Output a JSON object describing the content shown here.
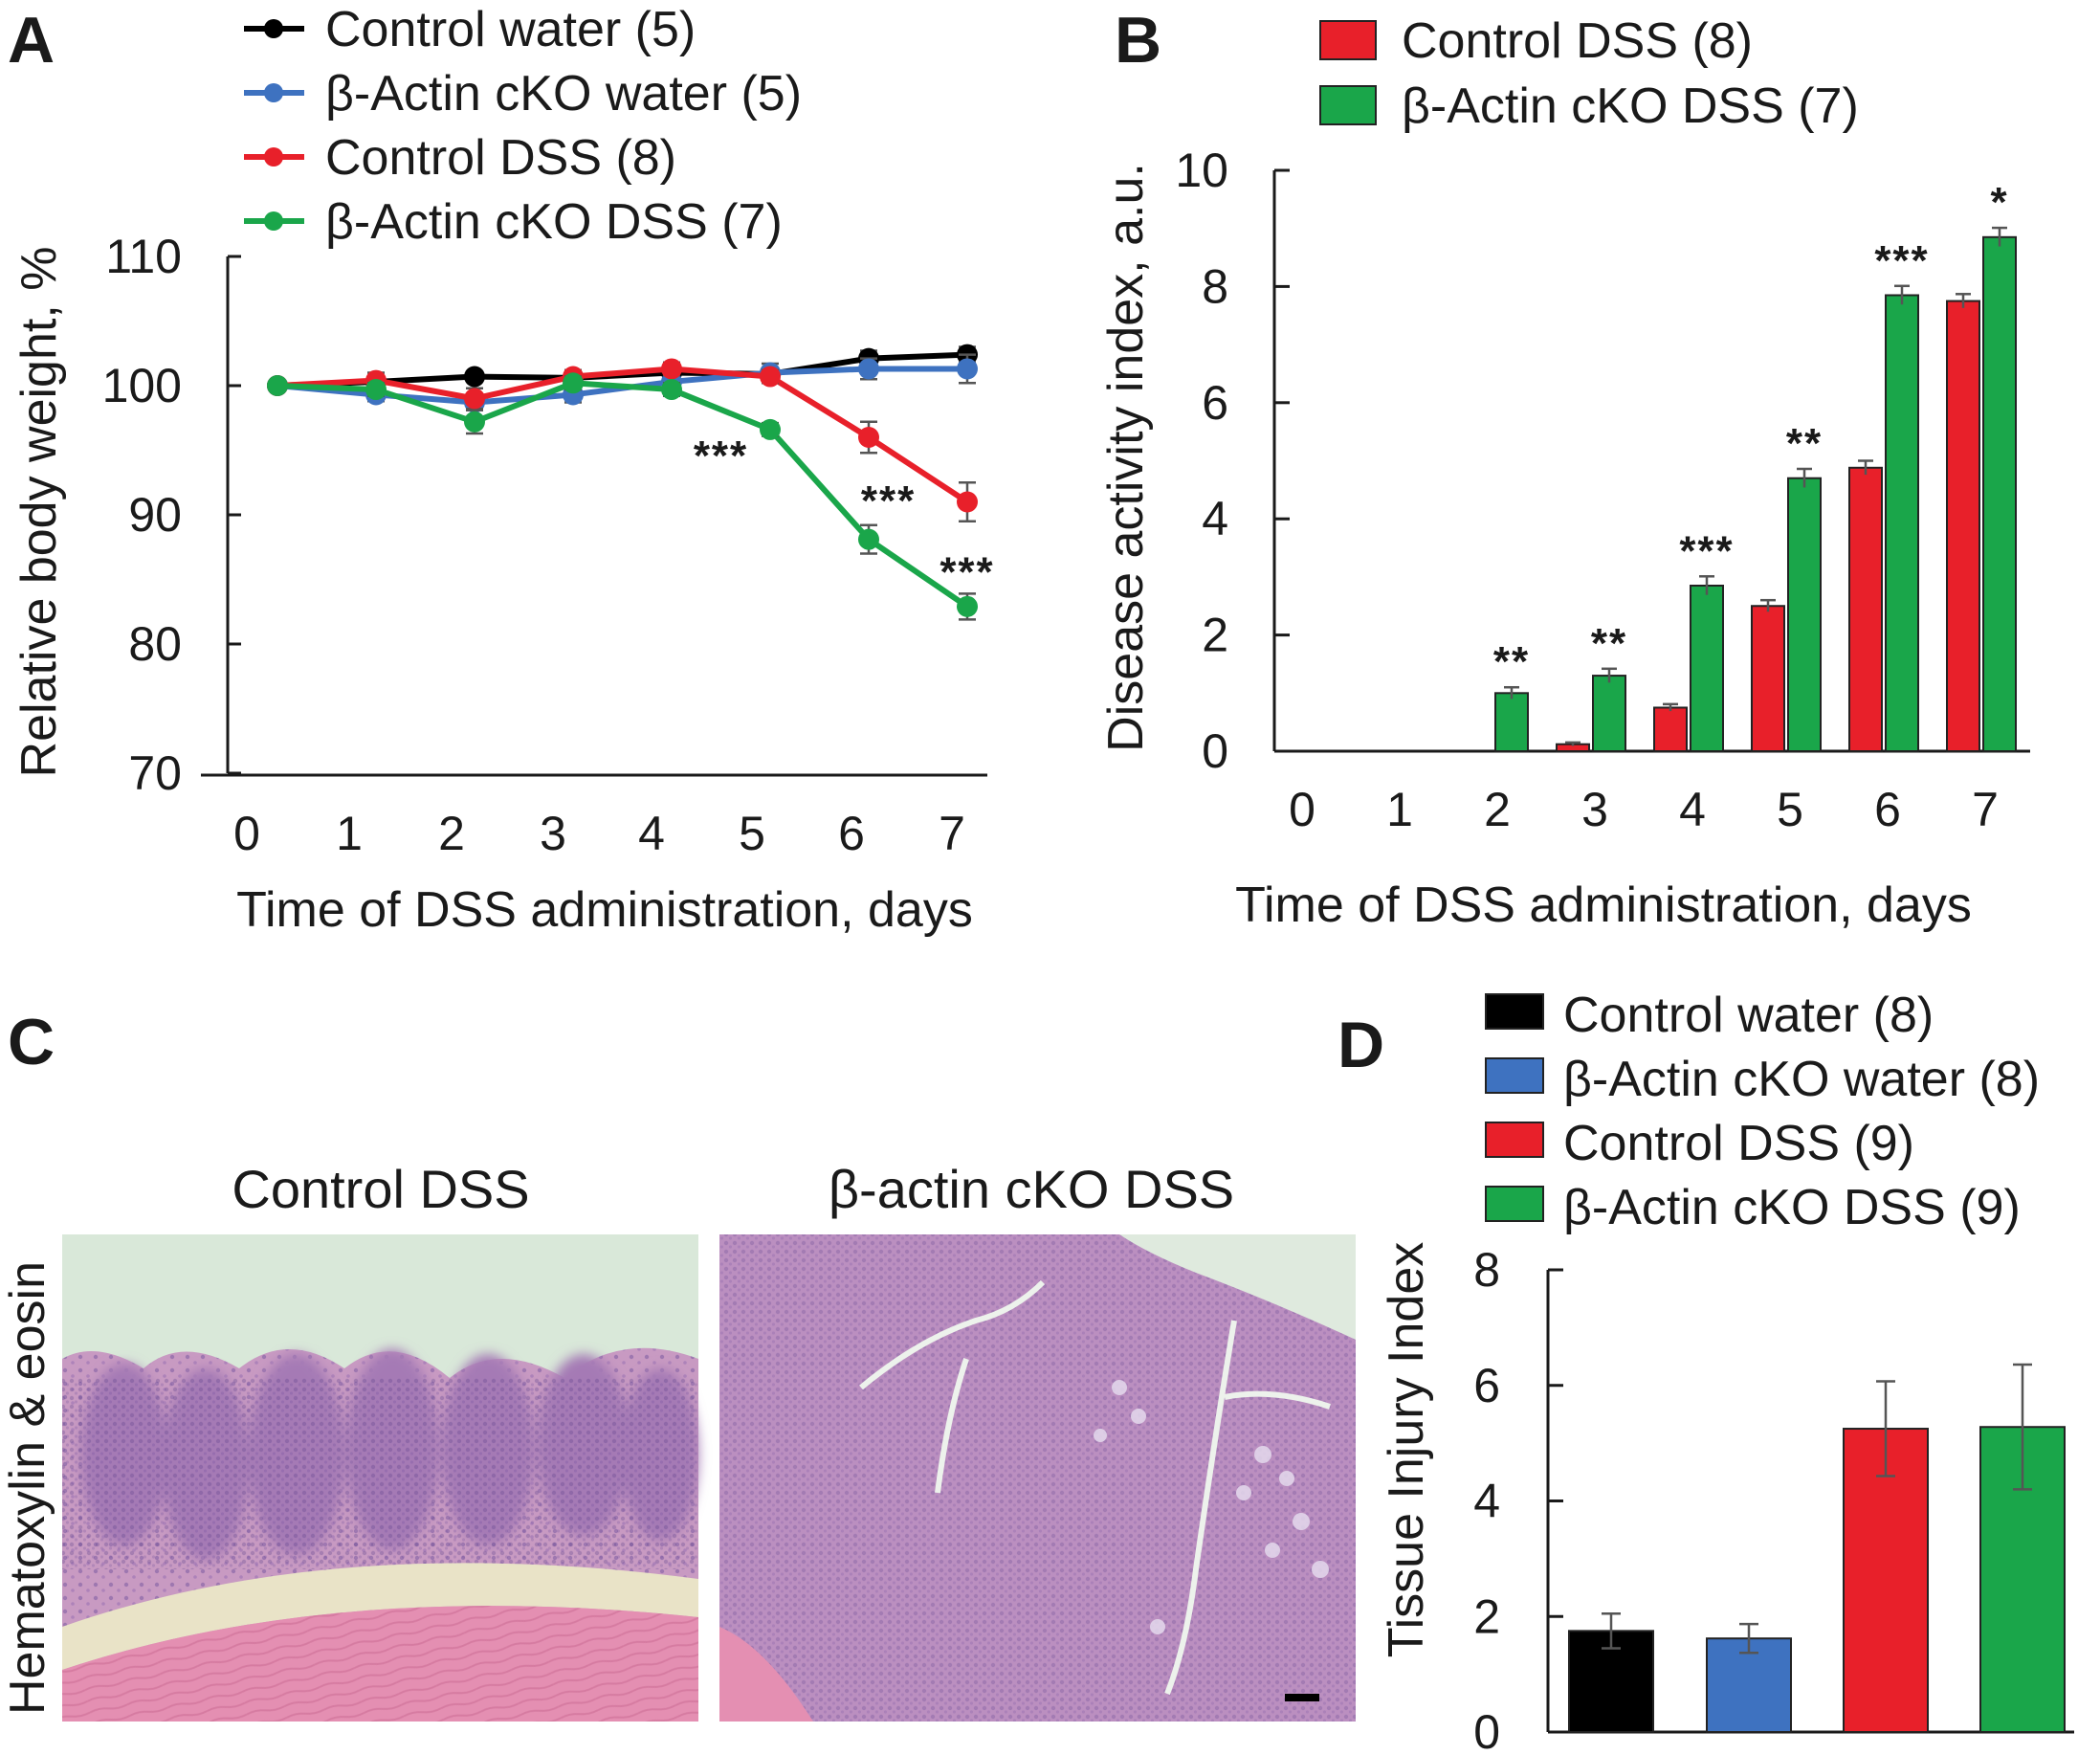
{
  "panels": {
    "A": "A",
    "B": "B",
    "C": "C",
    "D": "D"
  },
  "colors": {
    "control_water": "#000000",
    "cko_water": "#3e72c0",
    "control_dss": "#e8202a",
    "cko_dss": "#1aa64a"
  },
  "chart_data": [
    {
      "id": "A",
      "type": "line",
      "xlabel": "Time of DSS administration, days",
      "ylabel": "Relative body weight, %",
      "ylim": [
        70,
        110
      ],
      "yticks": [
        70,
        80,
        90,
        100,
        110
      ],
      "x": [
        0,
        1,
        2,
        3,
        4,
        5,
        6,
        7
      ],
      "legend_position": "top",
      "series": [
        {
          "name": "Control water (5)",
          "color": "#000000",
          "values": [
            100,
            100.3,
            100.7,
            100.6,
            101.0,
            100.9,
            102.1,
            102.4
          ],
          "errors": [
            0,
            0.4,
            0.4,
            0.4,
            0.5,
            0.5,
            0.6,
            0.6
          ]
        },
        {
          "name": "β-Actin cKO water (5)",
          "color": "#3e72c0",
          "values": [
            100,
            99.3,
            98.7,
            99.3,
            100.3,
            101.0,
            101.3,
            101.3
          ],
          "errors": [
            0,
            0.5,
            0.6,
            0.6,
            0.5,
            0.7,
            0.8,
            1.1
          ]
        },
        {
          "name": "Control DSS (8)",
          "color": "#e8202a",
          "values": [
            100,
            100.4,
            99.0,
            100.7,
            101.3,
            100.7,
            96.0,
            91.0
          ],
          "errors": [
            0,
            0.6,
            0.8,
            0.5,
            0.5,
            0.5,
            1.2,
            1.5
          ]
        },
        {
          "name": "β-Actin cKO DSS (7)",
          "color": "#1aa64a",
          "values": [
            100,
            99.7,
            97.2,
            100.2,
            99.7,
            96.6,
            88.1,
            82.9
          ],
          "errors": [
            0,
            0.5,
            0.9,
            0.5,
            0.5,
            0.5,
            1.1,
            1.0
          ]
        }
      ],
      "annotations": [
        {
          "x": 4.5,
          "y": 93.5,
          "text": "***"
        },
        {
          "x": 6.2,
          "y": 90.0,
          "text": "***"
        },
        {
          "x": 7.0,
          "y": 84.5,
          "text": "***"
        }
      ]
    },
    {
      "id": "B",
      "type": "bar",
      "xlabel": "Time of DSS administration, days",
      "ylabel": "Disease activity index, a.u.",
      "ylim": [
        0,
        10
      ],
      "yticks": [
        0,
        2,
        4,
        6,
        8,
        10
      ],
      "categories": [
        "0",
        "1",
        "2",
        "3",
        "4",
        "5",
        "6",
        "7"
      ],
      "legend_position": "top",
      "series": [
        {
          "name": "Control DSS (8)",
          "color": "#e8202a",
          "values": [
            0,
            0,
            0,
            0.12,
            0.75,
            2.5,
            4.88,
            7.75
          ],
          "errors": [
            0,
            0,
            0,
            0.03,
            0.06,
            0.1,
            0.12,
            0.12
          ]
        },
        {
          "name": "β-Actin cKO DSS (7)",
          "color": "#1aa64a",
          "values": [
            0,
            0,
            1.0,
            1.3,
            2.85,
            4.7,
            7.85,
            8.85
          ],
          "errors": [
            0,
            0,
            0.1,
            0.12,
            0.16,
            0.16,
            0.16,
            0.16
          ]
        }
      ],
      "significance": [
        "",
        "",
        "**",
        "**",
        "***",
        "**",
        "***",
        "*"
      ]
    },
    {
      "id": "D",
      "type": "bar",
      "ylabel": "Tissue Injury Index",
      "ylim": [
        0,
        8
      ],
      "yticks": [
        0,
        2,
        4,
        6,
        8
      ],
      "legend_position": "top",
      "series": [
        {
          "name": "Control water (8)",
          "color": "#000000",
          "value": 1.75,
          "error": 0.3
        },
        {
          "name": "β-Actin cKO water (8)",
          "color": "#3e72c0",
          "value": 1.62,
          "error": 0.25
        },
        {
          "name": "Control DSS (9)",
          "color": "#e8202a",
          "value": 5.25,
          "error": 0.82
        },
        {
          "name": "β-Actin cKO DSS (9)",
          "color": "#1aa64a",
          "value": 5.28,
          "error": 1.08
        }
      ]
    }
  ],
  "panel_c": {
    "left_title": "Control DSS",
    "right_title": "β-actin cKO DSS",
    "side_label": "Hematoxylin & eosin"
  }
}
